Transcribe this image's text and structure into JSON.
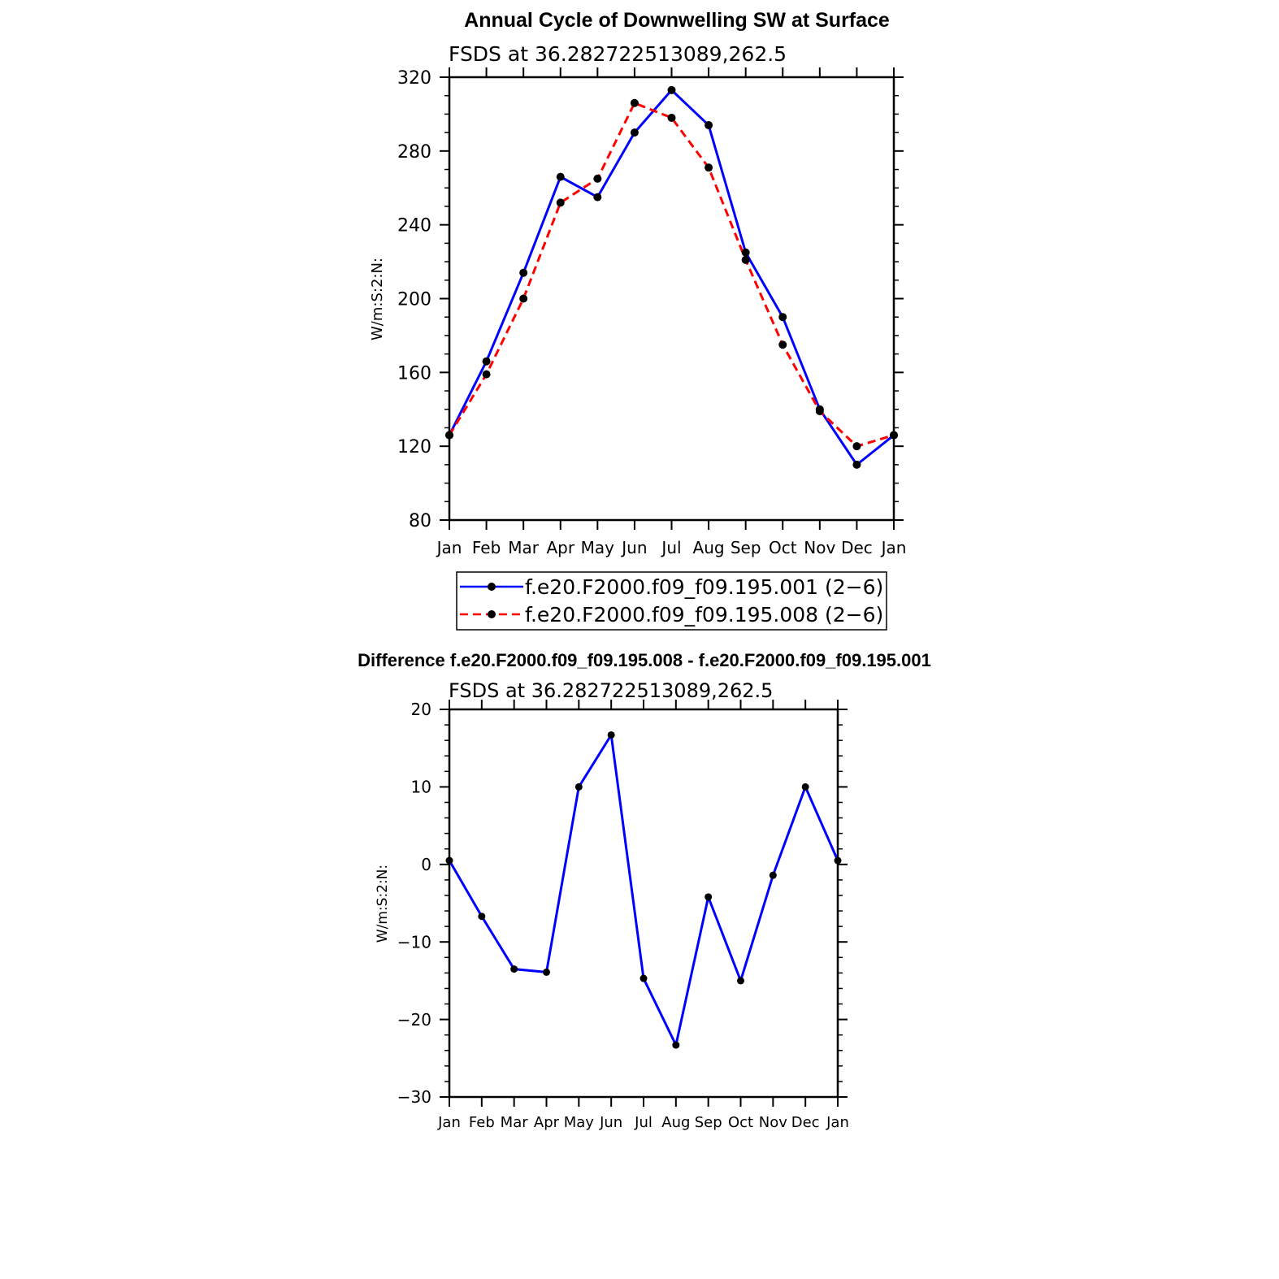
{
  "chart_data": [
    {
      "type": "line",
      "title": "Annual Cycle of Downwelling SW at Surface",
      "subtitle": "FSDS at 36.282722513089,262.5",
      "xlabel": "",
      "ylabel": "W/m:S:2:N:",
      "categories": [
        "Jan",
        "Feb",
        "Mar",
        "Apr",
        "May",
        "Jun",
        "Jul",
        "Aug",
        "Sep",
        "Oct",
        "Nov",
        "Dec",
        "Jan"
      ],
      "ylim": [
        80,
        320
      ],
      "yticks": [
        80,
        120,
        160,
        200,
        240,
        280,
        320
      ],
      "series": [
        {
          "name": "f.e20.F2000.f09_f09.195.001 (2−6)",
          "color": "#0000ff",
          "dash": "solid",
          "values": [
            126,
            166,
            214,
            266,
            255,
            290,
            313,
            294,
            225,
            190,
            140,
            110,
            126
          ]
        },
        {
          "name": "f.e20.F2000.f09_f09.195.008 (2−6)",
          "color": "#ff0000",
          "dash": "dashed",
          "values": [
            126,
            159,
            200,
            252,
            265,
            306,
            298,
            271,
            221,
            175,
            139,
            120,
            126
          ]
        }
      ],
      "legend_position": "bottom"
    },
    {
      "type": "line",
      "title": "Difference f.e20.F2000.f09_f09.195.008 - f.e20.F2000.f09_f09.195.001",
      "subtitle": "FSDS at 36.282722513089,262.5",
      "xlabel": "",
      "ylabel": "W/m:S:2:N:",
      "categories": [
        "Jan",
        "Feb",
        "Mar",
        "Apr",
        "May",
        "Jun",
        "Jul",
        "Aug",
        "Sep",
        "Oct",
        "Nov",
        "Dec",
        "Jan"
      ],
      "ylim": [
        -30,
        20
      ],
      "yticks": [
        -30,
        -20,
        -10,
        0,
        10,
        20
      ],
      "ytick_labels": [
        "−30",
        "−20",
        "−10",
        "0",
        "10",
        "20"
      ],
      "series": [
        {
          "name": "difference",
          "color": "#0000ff",
          "dash": "solid",
          "values": [
            0.5,
            -6.7,
            -13.5,
            -13.9,
            10,
            16.7,
            -14.7,
            -23.3,
            -4.2,
            -15,
            -1.4,
            10,
            0.5
          ]
        }
      ]
    }
  ]
}
